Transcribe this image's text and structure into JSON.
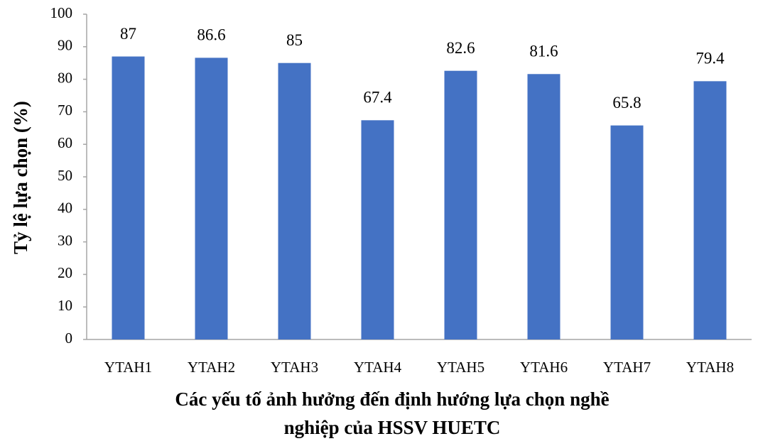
{
  "chart_data": {
    "type": "bar",
    "ylabel": "Tỷ lệ lựa chọn (%)",
    "xlabel": [
      "Các yếu tố ảnh hưởng đến định hướng lựa chọn nghề",
      "nghiệp của HSSV HUETC"
    ],
    "categories": [
      "YTAH1",
      "YTAH2",
      "YTAH3",
      "YTAH4",
      "YTAH5",
      "YTAH6",
      "YTAH7",
      "YTAH8"
    ],
    "values": [
      87,
      86.6,
      85,
      67.4,
      82.6,
      81.6,
      65.8,
      79.4
    ],
    "color": "#4472c4",
    "ylim": [
      0,
      100
    ],
    "yticks": [
      0,
      10,
      20,
      30,
      40,
      50,
      60,
      70,
      80,
      90,
      100
    ],
    "grid": false
  }
}
